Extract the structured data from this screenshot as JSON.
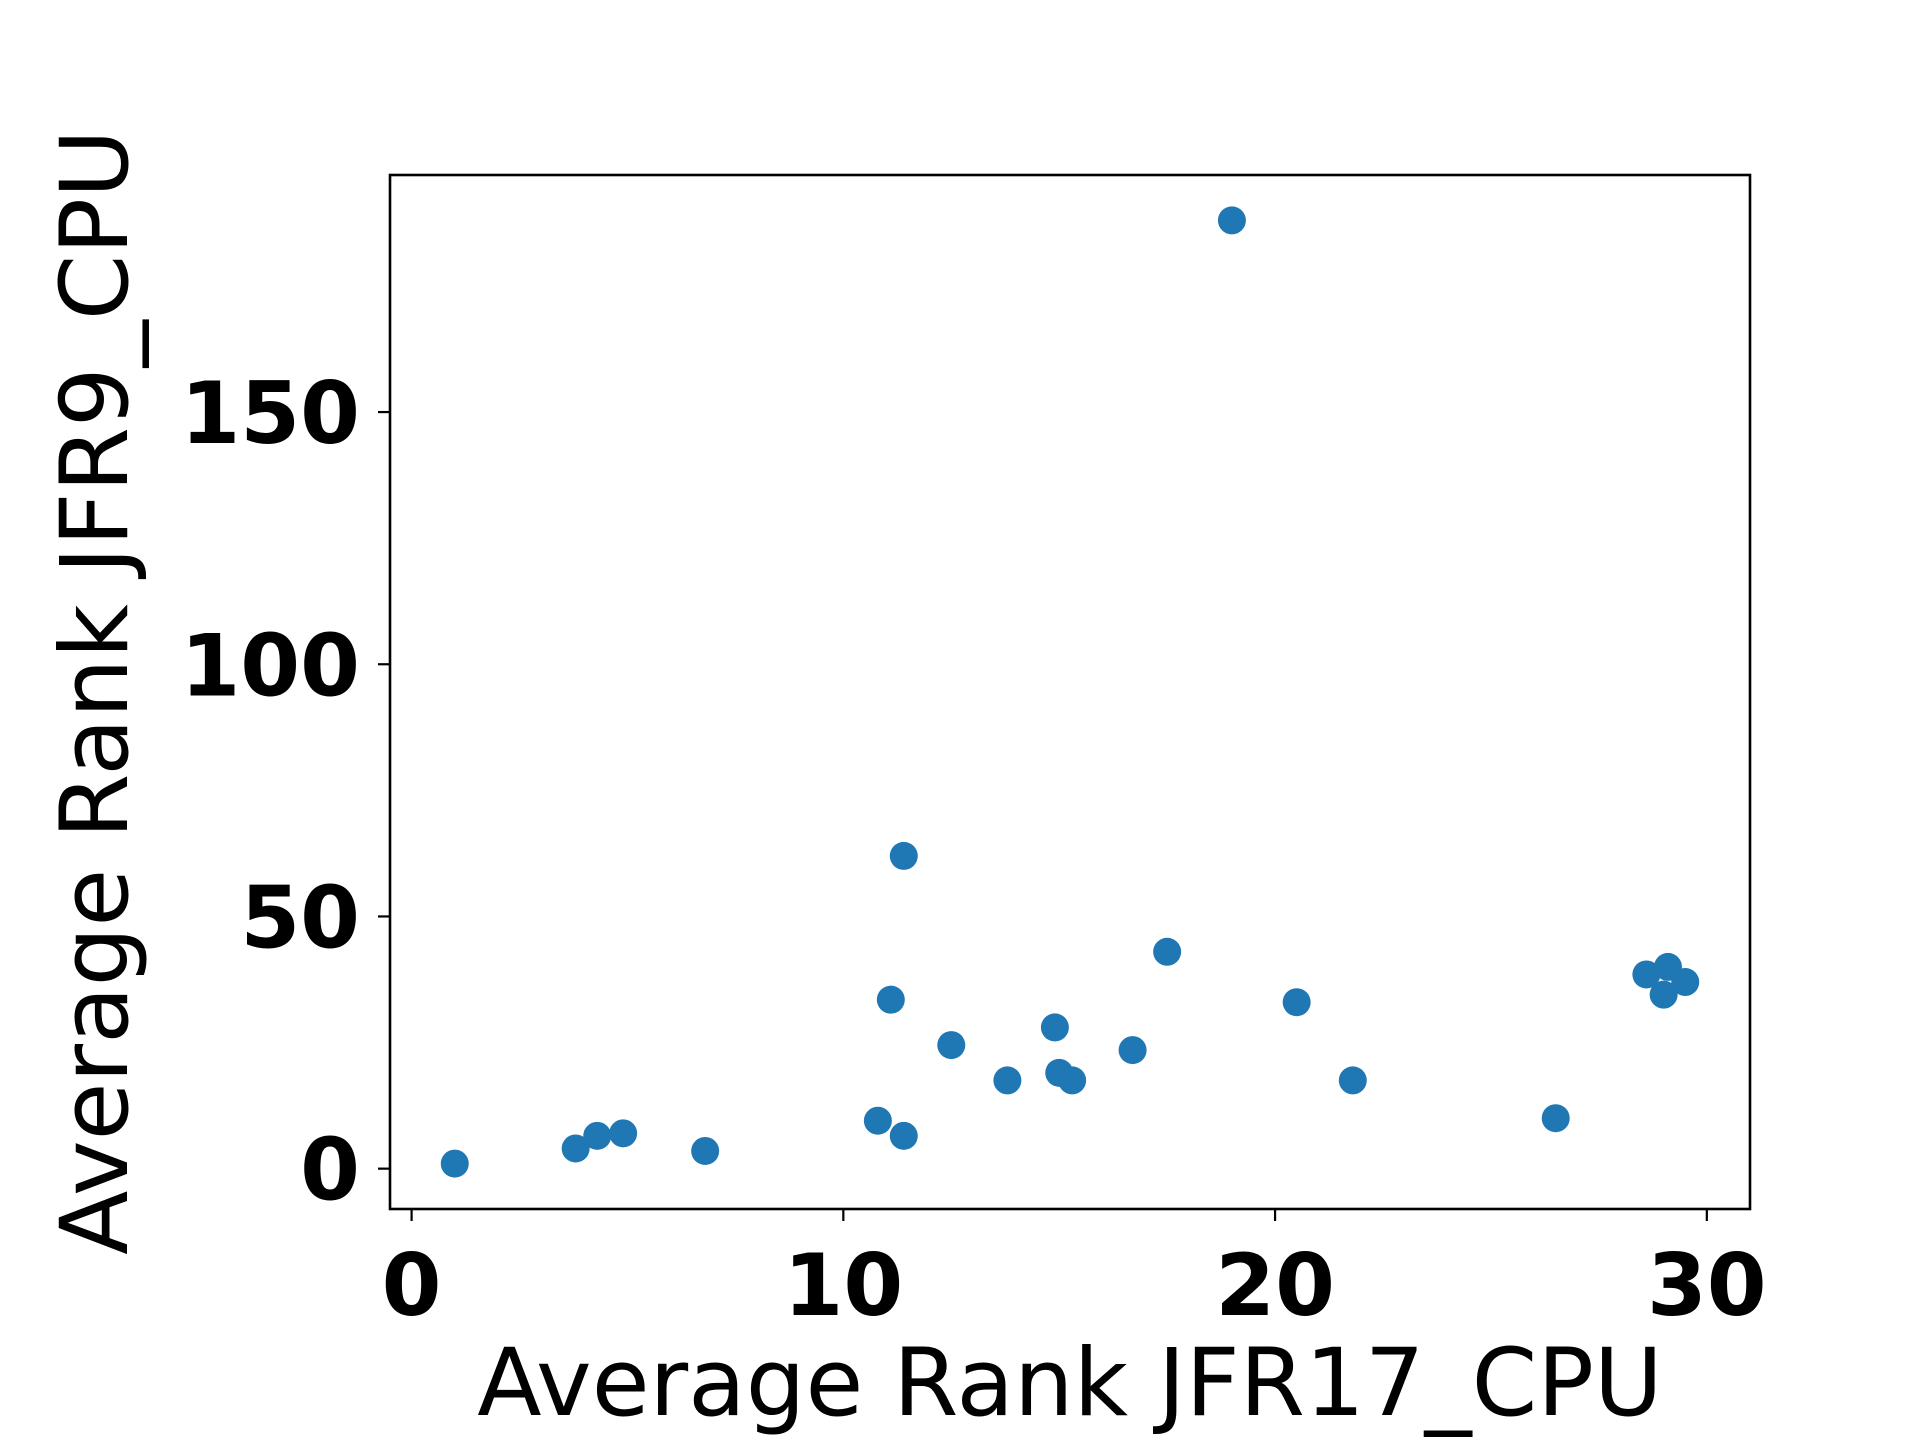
{
  "chart_data": {
    "type": "scatter",
    "title": "",
    "xlabel": "Average Rank JFR17_CPU",
    "ylabel": "Average Rank JFR9_CPU",
    "xlim": [
      -0.5,
      31
    ],
    "ylim": [
      -8,
      197
    ],
    "xticks": [
      0,
      10,
      20,
      30
    ],
    "yticks": [
      0,
      50,
      100,
      150
    ],
    "xtick_labels": [
      "0",
      "10",
      "20",
      "30"
    ],
    "ytick_labels": [
      "0",
      "50",
      "100",
      "150"
    ],
    "grid": false,
    "legend": "none",
    "marker_color": "#1f77b4",
    "series": [
      {
        "points": [
          {
            "x": 1.0,
            "y": 1
          },
          {
            "x": 3.8,
            "y": 4
          },
          {
            "x": 4.3,
            "y": 6.5
          },
          {
            "x": 4.9,
            "y": 7
          },
          {
            "x": 6.8,
            "y": 3.5
          },
          {
            "x": 10.8,
            "y": 9.5
          },
          {
            "x": 11.1,
            "y": 33.5
          },
          {
            "x": 11.4,
            "y": 62
          },
          {
            "x": 11.4,
            "y": 6.5
          },
          {
            "x": 12.5,
            "y": 24.5
          },
          {
            "x": 13.8,
            "y": 17.5
          },
          {
            "x": 14.9,
            "y": 28
          },
          {
            "x": 15.0,
            "y": 19
          },
          {
            "x": 15.3,
            "y": 17.5
          },
          {
            "x": 16.7,
            "y": 23.5
          },
          {
            "x": 17.5,
            "y": 43
          },
          {
            "x": 19.0,
            "y": 188
          },
          {
            "x": 20.5,
            "y": 33
          },
          {
            "x": 21.8,
            "y": 17.5
          },
          {
            "x": 26.5,
            "y": 10
          },
          {
            "x": 28.6,
            "y": 38.5
          },
          {
            "x": 29.1,
            "y": 40
          },
          {
            "x": 29.0,
            "y": 34.5
          },
          {
            "x": 29.5,
            "y": 37
          }
        ]
      }
    ]
  }
}
